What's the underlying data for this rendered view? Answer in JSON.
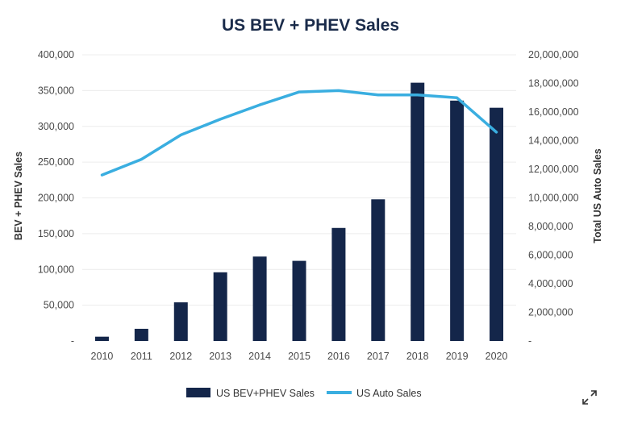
{
  "chart_data": {
    "type": "bar+line",
    "title": "US BEV + PHEV Sales",
    "categories": [
      "2010",
      "2011",
      "2012",
      "2013",
      "2014",
      "2015",
      "2016",
      "2017",
      "2018",
      "2019",
      "2020"
    ],
    "series": [
      {
        "name": "US BEV+PHEV Sales",
        "type": "bar",
        "axis": "left",
        "color": "#14264a",
        "values": [
          6000,
          17000,
          54000,
          96000,
          118000,
          112000,
          158000,
          198000,
          361000,
          336000,
          326000
        ]
      },
      {
        "name": "US Auto Sales",
        "type": "line",
        "axis": "right",
        "color": "#3aaee0",
        "values": [
          11600000,
          12700000,
          14400000,
          15500000,
          16500000,
          17400000,
          17500000,
          17200000,
          17200000,
          17000000,
          14600000
        ]
      }
    ],
    "ylabel_left": "BEV + PHEV Sales",
    "ylabel_right": "Total US Auto Sales",
    "ylim_left": [
      0,
      400000
    ],
    "ylim_right": [
      0,
      20000000
    ],
    "yticks_left": [
      "-",
      "50,000",
      "100,000",
      "150,000",
      "200,000",
      "250,000",
      "300,000",
      "350,000",
      "400,000"
    ],
    "yticks_right": [
      "-",
      "2,000,000",
      "4,000,000",
      "6,000,000",
      "8,000,000",
      "10,000,000",
      "12,000,000",
      "14,000,000",
      "16,000,000",
      "18,000,000",
      "20,000,000"
    ],
    "grid": true,
    "legend_position": "bottom"
  },
  "ui": {
    "expand_icon": "expand-icon"
  }
}
